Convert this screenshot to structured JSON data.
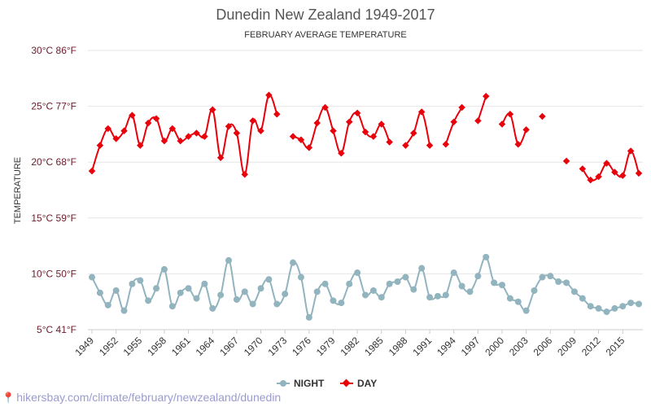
{
  "source_text": "hikersbay.com/climate/february/newzealand/dunedin",
  "colors": {
    "day": "#e8000b",
    "night": "#92b4bf",
    "grid": "#e6e6e6",
    "ytick": "#6b1b2b"
  },
  "chart_data": {
    "type": "line",
    "title": "Dunedin New Zealand 1949-2017",
    "subtitle": "FEBRUARY AVERAGE TEMPERATURE",
    "ylabel": "TEMPERATURE",
    "ylim": [
      5,
      30
    ],
    "yticks": [
      {
        "value": 5,
        "label": "5°C 41°F"
      },
      {
        "value": 10,
        "label": "10°C 50°F"
      },
      {
        "value": 15,
        "label": "15°C 59°F"
      },
      {
        "value": 20,
        "label": "20°C 68°F"
      },
      {
        "value": 25,
        "label": "25°C 77°F"
      },
      {
        "value": 30,
        "label": "30°C 86°F"
      }
    ],
    "xlim": [
      1949,
      2017
    ],
    "xticks": [
      "1949",
      "1952",
      "1955",
      "1958",
      "1961",
      "1964",
      "1967",
      "1970",
      "1973",
      "1976",
      "1979",
      "1982",
      "1985",
      "1988",
      "1991",
      "1994",
      "1997",
      "2000",
      "2003",
      "2006",
      "2009",
      "2012",
      "2015"
    ],
    "x": [
      1949,
      1950,
      1951,
      1952,
      1953,
      1954,
      1955,
      1956,
      1957,
      1958,
      1959,
      1960,
      1961,
      1962,
      1963,
      1964,
      1965,
      1966,
      1967,
      1968,
      1969,
      1970,
      1971,
      1972,
      1973,
      1974,
      1975,
      1976,
      1977,
      1978,
      1979,
      1980,
      1981,
      1982,
      1983,
      1984,
      1985,
      1986,
      1987,
      1988,
      1989,
      1990,
      1991,
      1992,
      1993,
      1994,
      1995,
      1996,
      1997,
      1998,
      1999,
      2000,
      2001,
      2002,
      2003,
      2004,
      2005,
      2006,
      2007,
      2008,
      2009,
      2010,
      2011,
      2012,
      2013,
      2014,
      2015,
      2016,
      2017
    ],
    "series": [
      {
        "name": "NIGHT",
        "values": [
          9.7,
          8.3,
          7.2,
          8.5,
          6.7,
          9.1,
          9.4,
          7.6,
          8.7,
          10.4,
          7.1,
          8.3,
          8.7,
          7.8,
          9.1,
          6.9,
          8.1,
          11.2,
          7.7,
          8.4,
          7.3,
          8.7,
          9.5,
          7.3,
          8.2,
          11.0,
          9.7,
          6.1,
          8.4,
          9.1,
          7.6,
          7.4,
          9.1,
          10.1,
          8.1,
          8.5,
          7.9,
          9.1,
          9.3,
          9.7,
          8.6,
          10.5,
          7.9,
          8.0,
          8.1,
          10.1,
          8.9,
          8.4,
          9.8,
          11.5,
          9.2,
          9.0,
          7.8,
          7.5,
          6.7,
          8.5,
          9.7,
          9.8,
          9.3,
          9.2,
          8.4,
          7.8,
          7.1,
          6.9,
          6.6,
          6.9,
          7.1,
          7.4,
          7.3
        ]
      },
      {
        "name": "DAY",
        "values": [
          19.2,
          21.5,
          23.0,
          22.1,
          22.8,
          24.2,
          21.5,
          23.5,
          23.9,
          21.9,
          23.0,
          21.9,
          22.3,
          22.6,
          22.3,
          24.7,
          20.4,
          23.2,
          22.6,
          18.9,
          23.7,
          22.8,
          26.0,
          24.3,
          null,
          22.3,
          22.0,
          21.3,
          23.5,
          24.9,
          22.8,
          20.8,
          23.6,
          24.4,
          22.7,
          22.3,
          23.4,
          21.8,
          null,
          21.5,
          22.6,
          24.5,
          21.5,
          null,
          21.6,
          23.6,
          24.9,
          null,
          23.7,
          25.9,
          null,
          23.4,
          24.3,
          21.6,
          22.9,
          null,
          24.1,
          null,
          null,
          20.1,
          null,
          19.4,
          18.4,
          18.7,
          19.9,
          19.1,
          18.8,
          21.0,
          19.0
        ]
      }
    ],
    "legend": [
      "NIGHT",
      "DAY"
    ],
    "legend_position": "bottom-center",
    "grid": true
  }
}
